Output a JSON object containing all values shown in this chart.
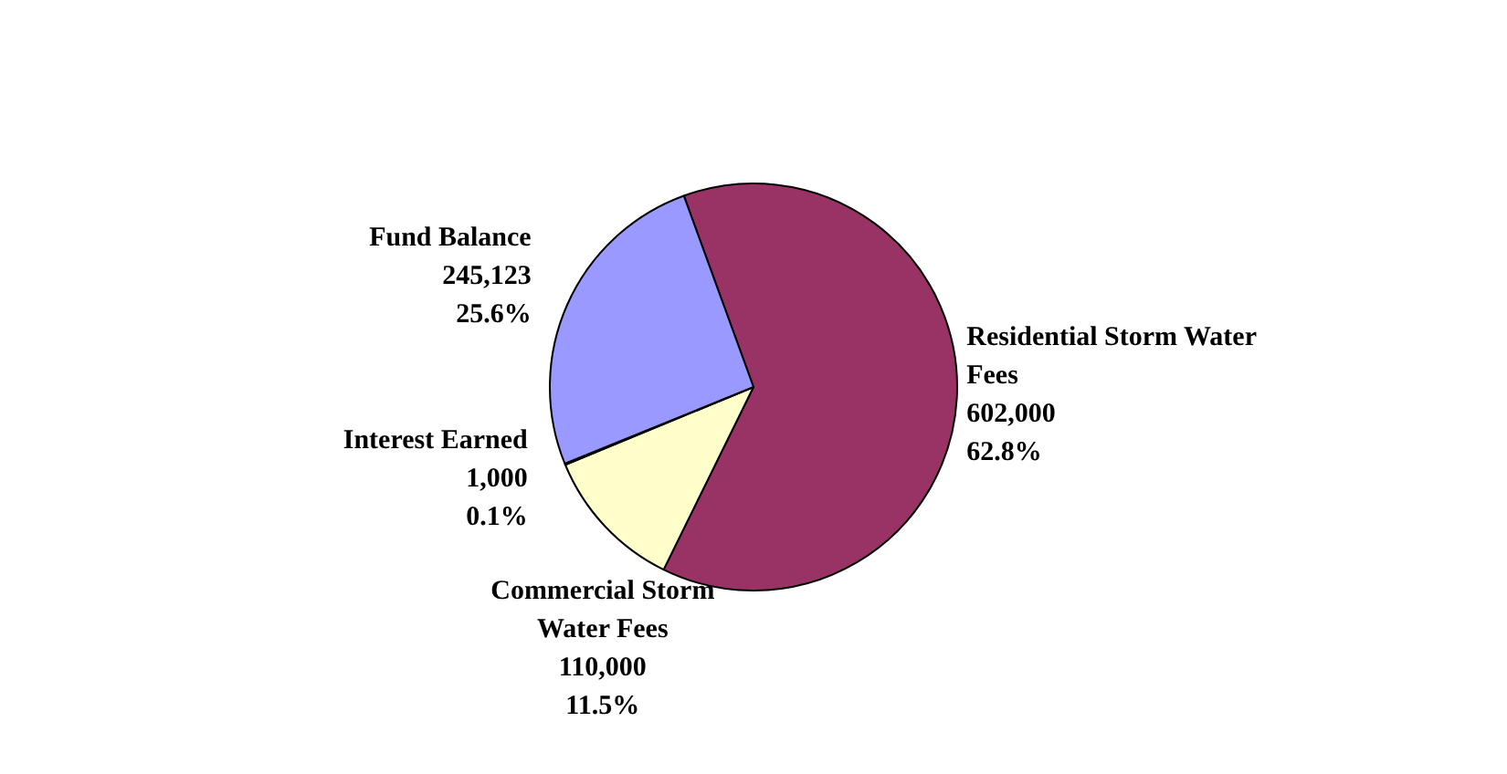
{
  "chart_data": {
    "type": "pie",
    "categories": [
      "Residential Storm Water Fees",
      "Commercial Storm Water Fees",
      "Interest Earned",
      "Fund Balance"
    ],
    "values": [
      602000,
      110000,
      1000,
      245123
    ],
    "colors": [
      "#993366",
      "#ffffcc",
      "#ccffff",
      "#9999ff"
    ],
    "value_labels": [
      "602,000\n62.8%",
      "110,000\n11.5%",
      "1,000\n0.1%",
      "245,123\n25.6%"
    ],
    "legend": false
  }
}
